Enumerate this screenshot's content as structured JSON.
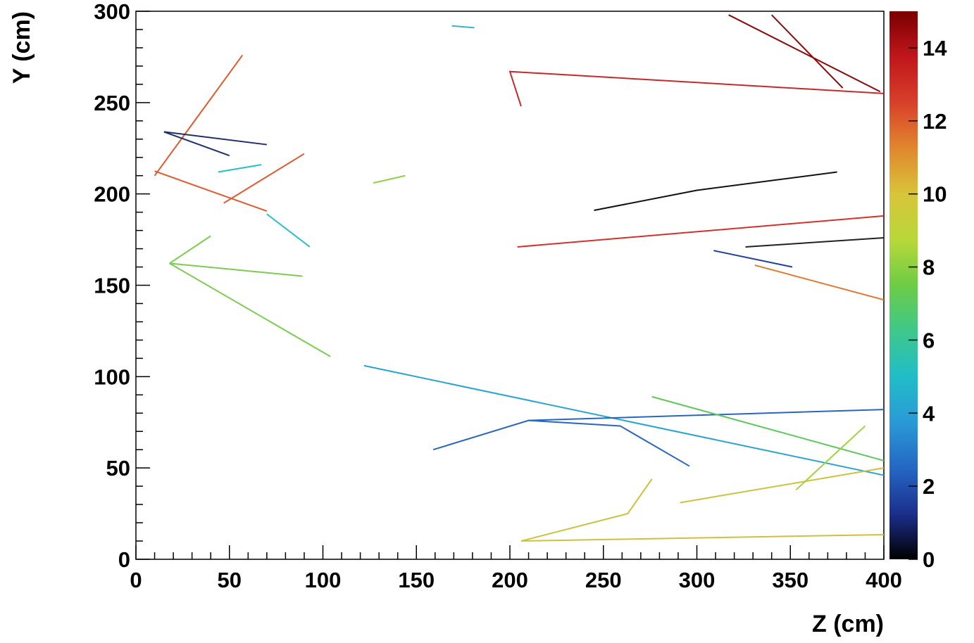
{
  "chart_data": {
    "type": "line",
    "x_label": "Z (cm)",
    "y_label": "Y (cm)",
    "xlim": [
      0,
      400
    ],
    "xticks": [
      0,
      50,
      100,
      150,
      200,
      250,
      300,
      350,
      400
    ],
    "ylim": [
      0,
      300
    ],
    "yticks": [
      0,
      50,
      100,
      150,
      200,
      250,
      300
    ],
    "colorbar": {
      "lim": [
        0,
        15
      ],
      "ticks": [
        0,
        2,
        4,
        6,
        8,
        10,
        12,
        14
      ],
      "colors": [
        "#000000",
        "#1c2f8c",
        "#2467c4",
        "#2a9ad6",
        "#22bcc8",
        "#3ec88a",
        "#6dcc45",
        "#b8d83a",
        "#d8c43a",
        "#e0872e",
        "#d8402a",
        "#c0161c",
        "#7a0000"
      ]
    },
    "series": [
      {
        "color": "#c42a2a",
        "x": [
          206,
          200,
          400
        ],
        "values": [
          248,
          267,
          255
        ]
      },
      {
        "color": "#8a0a0a",
        "x": [
          317,
          398
        ],
        "values": [
          298,
          256
        ]
      },
      {
        "color": "#8a0a0a",
        "x": [
          340,
          378
        ],
        "values": [
          298,
          258
        ]
      },
      {
        "color": "#111111",
        "x": [
          245,
          300,
          375
        ],
        "values": [
          191,
          202,
          212
        ]
      },
      {
        "color": "#d43030",
        "x": [
          204,
          400
        ],
        "values": [
          171,
          188
        ]
      },
      {
        "color": "#2040a0",
        "x": [
          309,
          351
        ],
        "values": [
          169,
          160
        ]
      },
      {
        "color": "#e07a30",
        "x": [
          331,
          400
        ],
        "values": [
          161,
          142
        ]
      },
      {
        "color": "#222222",
        "x": [
          326,
          400
        ],
        "values": [
          171,
          176
        ]
      },
      {
        "color": "#28a4d0",
        "x": [
          122,
          400
        ],
        "values": [
          106,
          46
        ]
      },
      {
        "color": "#2866c0",
        "x": [
          159,
          210,
          400
        ],
        "values": [
          60,
          76,
          82
        ]
      },
      {
        "color": "#2866c0",
        "x": [
          210,
          259,
          296
        ],
        "values": [
          76,
          73,
          51
        ]
      },
      {
        "color": "#5cc85a",
        "x": [
          276,
          400
        ],
        "values": [
          89,
          54
        ]
      },
      {
        "color": "#cfc040",
        "x": [
          206,
          400
        ],
        "values": [
          10,
          13.5
        ]
      },
      {
        "color": "#cfc040",
        "x": [
          206,
          263,
          276
        ],
        "values": [
          10,
          25,
          44
        ]
      },
      {
        "color": "#cfc040",
        "x": [
          291,
          400
        ],
        "values": [
          31,
          50
        ]
      },
      {
        "color": "#7ccc50",
        "x": [
          104,
          18,
          89
        ],
        "values": [
          111,
          162,
          155
        ]
      },
      {
        "color": "#7ccc50",
        "x": [
          18,
          40
        ],
        "values": [
          162,
          177
        ]
      },
      {
        "color": "#e05a30",
        "x": [
          10,
          70
        ],
        "values": [
          212.5,
          190.6
        ]
      },
      {
        "color": "#e05a30",
        "x": [
          10,
          57
        ],
        "values": [
          210,
          276
        ]
      },
      {
        "color": "#e05a30",
        "x": [
          47,
          90
        ],
        "values": [
          195,
          222
        ]
      },
      {
        "color": "#1c2f6c",
        "x": [
          15,
          70
        ],
        "values": [
          234,
          227
        ]
      },
      {
        "color": "#1c2f6c",
        "x": [
          15,
          50
        ],
        "values": [
          234,
          221
        ]
      },
      {
        "color": "#28c0c8",
        "x": [
          44,
          67
        ],
        "values": [
          212,
          216
        ]
      },
      {
        "color": "#28c0c8",
        "x": [
          70,
          93
        ],
        "values": [
          189,
          171
        ]
      },
      {
        "color": "#40b0d0",
        "x": [
          169,
          181
        ],
        "values": [
          292,
          291
        ]
      },
      {
        "color": "#8ad040",
        "x": [
          127,
          144
        ],
        "values": [
          206,
          210
        ]
      },
      {
        "color": "#9cd43c",
        "x": [
          353,
          390
        ],
        "values": [
          38,
          73
        ]
      }
    ]
  }
}
